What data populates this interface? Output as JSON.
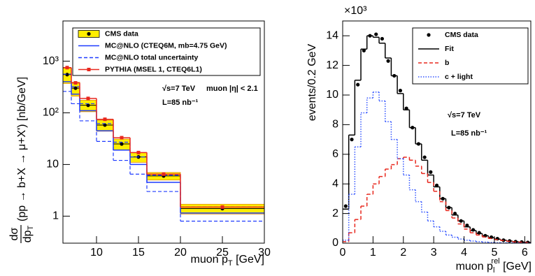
{
  "chart_data": [
    {
      "type": "histogram",
      "xlabel": [
        "muon p",
        "T",
        " [GeV]"
      ],
      "ylabel": [
        "dσ",
        "dp",
        "T",
        "(pp → b+X → μ+X') [nb/GeV]"
      ],
      "bins": [
        6,
        7,
        8,
        10,
        12,
        14,
        16,
        20,
        30
      ],
      "xlim": [
        6,
        30
      ],
      "ylim": [
        0.3,
        6000
      ],
      "log_y": true,
      "xticks": [
        10,
        15,
        20,
        25,
        30
      ],
      "yticks": [
        1,
        10,
        {
          "value": 100,
          "label": "10²"
        },
        {
          "value": 1000,
          "label": "10³"
        }
      ],
      "legend": "top-right",
      "annotations": [
        "√s=7 TeV",
        "muon |η| < 2.1",
        "L=85 nb⁻¹"
      ],
      "series": [
        {
          "name": "CMS data",
          "style": "points",
          "color": "#000000",
          "band_color": "#ffee00",
          "values": [
            550,
            300,
            140,
            58,
            25,
            14,
            6,
            1.4
          ],
          "errors": [
            180,
            90,
            35,
            14,
            6,
            3,
            1,
            0.3
          ]
        },
        {
          "name": "MC@NLO (CTEQ6M, mb=4.75 GeV)",
          "style": "step",
          "color": "#1f3bff",
          "values": [
            400,
            230,
            110,
            45,
            19,
            10,
            4.5,
            1.15
          ]
        },
        {
          "name": "MC@NLO total uncertainty",
          "style": "envelope",
          "color": "#1f3bff",
          "upper": [
            560,
            320,
            150,
            62,
            27,
            14,
            6.2,
            1.5
          ],
          "lower": [
            260,
            150,
            70,
            28,
            12,
            6.5,
            3,
            0.8
          ]
        },
        {
          "name": "PYTHIA (MSEL 1, CTEQ6L1)",
          "style": "step",
          "marker": "square",
          "color": "#e8281e",
          "values": [
            750,
            380,
            190,
            75,
            33,
            17,
            6.5,
            1.5
          ]
        }
      ]
    },
    {
      "type": "histogram",
      "xlabel": [
        "muon p",
        "l",
        "rel",
        "  [GeV]"
      ],
      "ylabel": "events/0.2 GeV",
      "y_multiplier": "×10³",
      "bins": [
        0,
        0.2,
        0.4,
        0.6,
        0.8,
        1.0,
        1.2,
        1.4,
        1.6,
        1.8,
        2.0,
        2.2,
        2.4,
        2.6,
        2.8,
        3.0,
        3.2,
        3.4,
        3.6,
        3.8,
        4.0,
        4.2,
        4.4,
        4.6,
        4.8,
        5.0,
        5.2,
        5.4,
        5.6,
        5.8,
        6.0,
        6.2
      ],
      "xlim": [
        0,
        6.2
      ],
      "ylim": [
        0,
        15
      ],
      "xticks": [
        0,
        1,
        2,
        3,
        4,
        5,
        6
      ],
      "yticks": [
        0,
        2,
        4,
        6,
        8,
        10,
        12,
        14
      ],
      "legend": "top-right",
      "annotations": [
        "√s=7 TeV",
        "L=85 nb⁻¹"
      ],
      "series": [
        {
          "name": "CMS data",
          "style": "points",
          "color": "#000000",
          "values": [
            2.5,
            7.0,
            10.7,
            13.0,
            14.0,
            14.1,
            13.8,
            12.3,
            11.3,
            10.3,
            9.1,
            7.8,
            6.7,
            5.8,
            4.8,
            3.9,
            3.0,
            2.4,
            2.0,
            1.5,
            1.2,
            0.9,
            0.7,
            0.5,
            0.4,
            0.3,
            0.2,
            0.15,
            0.1,
            0.08,
            0.05
          ]
        },
        {
          "name": "Fit",
          "style": "step",
          "color": "#000000",
          "values": [
            2.3,
            7.3,
            11.0,
            13.1,
            14.0,
            13.9,
            13.5,
            12.5,
            11.3,
            10.1,
            9.0,
            7.8,
            6.7,
            5.6,
            4.6,
            3.8,
            3.0,
            2.4,
            1.9,
            1.5,
            1.1,
            0.85,
            0.65,
            0.5,
            0.37,
            0.27,
            0.2,
            0.14,
            0.1,
            0.07,
            0.05
          ]
        },
        {
          "name": "b",
          "style": "step",
          "dash": "dashed",
          "color": "#e8281e",
          "values": [
            0.1,
            0.7,
            1.6,
            2.5,
            3.3,
            4.0,
            4.5,
            5.0,
            5.3,
            5.7,
            5.8,
            5.6,
            5.2,
            4.7,
            4.1,
            3.5,
            2.8,
            2.2,
            1.7,
            1.3,
            0.95,
            0.7,
            0.55,
            0.42,
            0.32,
            0.24,
            0.18,
            0.13,
            0.09,
            0.07,
            0.05
          ]
        },
        {
          "name": "c + light",
          "style": "step",
          "dash": "dotted",
          "color": "#3355ff",
          "values": [
            0.2,
            3.3,
            6.5,
            8.8,
            9.8,
            10.2,
            9.6,
            8.2,
            7.0,
            5.7,
            4.6,
            3.6,
            2.8,
            2.1,
            1.5,
            1.1,
            0.8,
            0.55,
            0.4,
            0.28,
            0.2,
            0.14,
            0.1,
            0.07,
            0.05,
            0.03,
            0.02,
            0.015,
            0.01,
            0.008,
            0.005
          ]
        }
      ]
    }
  ]
}
